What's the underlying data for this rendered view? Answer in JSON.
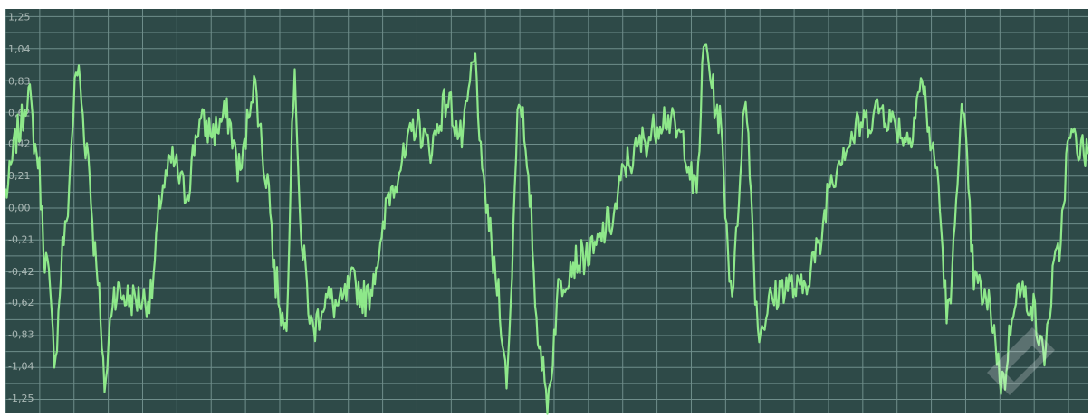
{
  "chart_data": {
    "type": "line",
    "title": "",
    "xlabel": "",
    "ylabel": "",
    "ylim": [
      -1.35,
      1.3
    ],
    "grid": true,
    "legend": "none",
    "y_ticks": [
      "1,25",
      "1,04",
      "0,83",
      "0,62",
      "0,42",
      "0,21",
      "0,00",
      "-0,21",
      "-0,42",
      "-0,62",
      "-0,83",
      "-1,04",
      "-1,25"
    ],
    "y_tick_values": [
      1.25,
      1.04,
      0.83,
      0.62,
      0.42,
      0.21,
      0.0,
      -0.21,
      -0.42,
      -0.62,
      -0.83,
      -1.04,
      -1.25
    ],
    "x_range": [
      0,
      1200
    ],
    "x_grid_step": 38,
    "series": [
      {
        "color": "#8ee88a",
        "noise_amplitude": 0.12,
        "x": [
          0,
          15,
          25,
          35,
          45,
          55,
          65,
          80,
          90,
          100,
          110,
          120,
          140,
          160,
          175,
          185,
          200,
          215,
          230,
          245,
          260,
          275,
          290,
          300,
          310,
          320,
          330,
          340,
          355,
          370,
          385,
          400,
          415,
          425,
          440,
          455,
          470,
          490,
          505,
          520,
          530,
          545,
          555,
          570,
          580,
          590,
          600,
          615,
          630,
          650,
          670,
          690,
          710,
          730,
          750,
          765,
          775,
          790,
          805,
          820,
          835,
          850,
          865,
          880,
          900,
          915,
          930,
          950,
          970,
          985,
          1000,
          1015,
          1030,
          1045,
          1060,
          1075,
          1090,
          1105,
          1120,
          1135,
          1150,
          1165,
          1180,
          1200
        ],
        "y": [
          0.1,
          0.5,
          0.75,
          0.35,
          -0.35,
          -0.95,
          -0.2,
          0.9,
          0.4,
          -0.3,
          -1.15,
          -0.55,
          -0.6,
          -0.6,
          0.15,
          0.3,
          0.1,
          0.55,
          0.5,
          0.6,
          0.25,
          0.8,
          0.2,
          -0.5,
          -0.8,
          0.8,
          -0.35,
          -0.8,
          -0.6,
          -0.65,
          -0.5,
          -0.6,
          -0.3,
          0.1,
          0.3,
          0.55,
          0.4,
          0.7,
          0.45,
          0.95,
          0.1,
          -0.5,
          -1.1,
          0.75,
          0.1,
          -0.8,
          -1.25,
          -0.5,
          -0.35,
          -0.3,
          -0.1,
          0.3,
          0.45,
          0.6,
          0.45,
          0.1,
          1.05,
          0.6,
          -0.5,
          0.65,
          -0.8,
          -0.6,
          -0.5,
          -0.55,
          -0.3,
          0.2,
          0.4,
          0.55,
          0.65,
          0.55,
          0.45,
          0.8,
          0.3,
          -0.7,
          0.6,
          -0.5,
          -0.65,
          -1.15,
          -0.55,
          -0.6,
          -0.95,
          -0.35,
          0.45,
          0.35
        ]
      }
    ]
  }
}
